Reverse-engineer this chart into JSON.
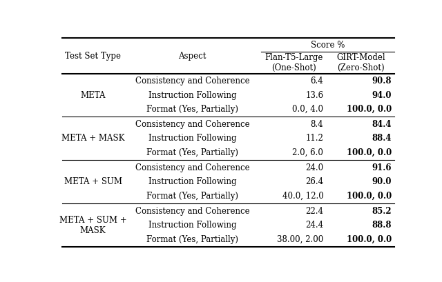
{
  "col_headers_row1": [
    "Test Set Type",
    "Aspect",
    "Score %"
  ],
  "col_headers_row2": [
    "",
    "",
    "Flan-T5-Large\n(One-Shot)",
    "GIRT-Model\n(Zero-Shot)"
  ],
  "rows": [
    {
      "group": "META",
      "aspects": [
        "Consistency and Coherence",
        "Instruction Following",
        "Format (Yes, Partially)"
      ],
      "flan": [
        "6.4",
        "13.6",
        "0.0, 4.0"
      ],
      "girt": [
        "90.8",
        "94.0",
        "100.0, 0.0"
      ]
    },
    {
      "group": "META + MASK",
      "aspects": [
        "Consistency and Coherence",
        "Instruction Following",
        "Format (Yes, Partially)"
      ],
      "flan": [
        "8.4",
        "11.2",
        "2.0, 6.0"
      ],
      "girt": [
        "84.4",
        "88.4",
        "100.0, 0.0"
      ]
    },
    {
      "group": "META + SUM",
      "aspects": [
        "Consistency and Coherence",
        "Instruction Following",
        "Format (Yes, Partially)"
      ],
      "flan": [
        "24.0",
        "26.4",
        "40.0, 12.0"
      ],
      "girt": [
        "91.6",
        "90.0",
        "100.0, 0.0"
      ]
    },
    {
      "group": "META + SUM +\nMASK",
      "aspects": [
        "Consistency and Coherence",
        "Instruction Following",
        "Format (Yes, Partially)"
      ],
      "flan": [
        "22.4",
        "24.4",
        "38.00, 2.00"
      ],
      "girt": [
        "85.2",
        "88.8",
        "100.0, 0.0"
      ]
    }
  ],
  "bg_color": "#ffffff",
  "text_color": "#000000",
  "font_size": 8.5,
  "header_font_size": 8.5
}
